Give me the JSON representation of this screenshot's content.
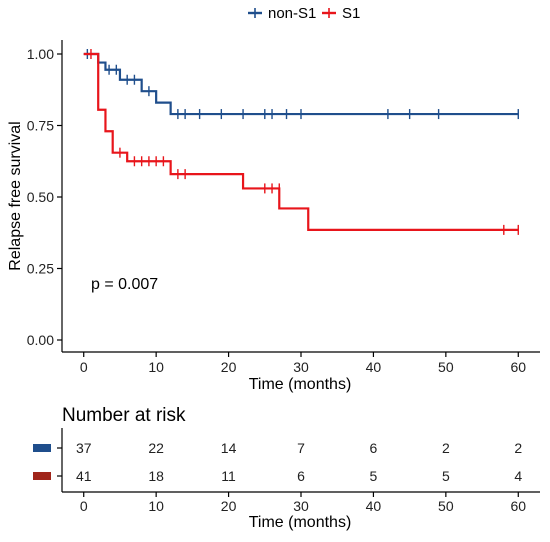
{
  "chart_data": [
    {
      "type": "line",
      "subtype": "kaplan-meier",
      "title": "",
      "xlabel": "Time (months)",
      "ylabel": "Relapse free survival",
      "xlim": [
        -3,
        63
      ],
      "ylim": [
        0,
        1.0
      ],
      "x_ticks": [
        0,
        10,
        20,
        30,
        40,
        50,
        60
      ],
      "y_ticks": [
        0,
        0.25,
        0.5,
        0.75,
        1.0
      ],
      "y_tick_labels": [
        "0.00",
        "0.25",
        "0.50",
        "0.75",
        "1.00"
      ],
      "grid": false,
      "legend_position": "top",
      "annotation": "p = 0.007",
      "series": [
        {
          "name": "non-S1",
          "color": "#1f4e8c",
          "steps": [
            [
              0,
              1.0
            ],
            [
              2,
              0.97
            ],
            [
              3,
              0.945
            ],
            [
              5,
              0.91
            ],
            [
              8,
              0.87
            ],
            [
              10,
              0.83
            ],
            [
              12,
              0.79
            ],
            [
              60,
              0.79
            ]
          ],
          "censored": [
            [
              0.5,
              1.0
            ],
            [
              3.5,
              0.945
            ],
            [
              4.5,
              0.945
            ],
            [
              6,
              0.91
            ],
            [
              7,
              0.91
            ],
            [
              9,
              0.87
            ],
            [
              13,
              0.79
            ],
            [
              14,
              0.79
            ],
            [
              16,
              0.79
            ],
            [
              19,
              0.79
            ],
            [
              22,
              0.79
            ],
            [
              25,
              0.79
            ],
            [
              26,
              0.79
            ],
            [
              28,
              0.79
            ],
            [
              30,
              0.79
            ],
            [
              42,
              0.79
            ],
            [
              45,
              0.79
            ],
            [
              49,
              0.79
            ],
            [
              60,
              0.79
            ]
          ]
        },
        {
          "name": "S1",
          "color": "#e8151b",
          "steps": [
            [
              0,
              1.0
            ],
            [
              2,
              0.805
            ],
            [
              3,
              0.73
            ],
            [
              4,
              0.655
            ],
            [
              6,
              0.625
            ],
            [
              12,
              0.58
            ],
            [
              22,
              0.53
            ],
            [
              27,
              0.46
            ],
            [
              31,
              0.385
            ],
            [
              60,
              0.385
            ]
          ],
          "censored": [
            [
              1,
              1.0
            ],
            [
              5,
              0.655
            ],
            [
              7,
              0.625
            ],
            [
              8,
              0.625
            ],
            [
              9,
              0.625
            ],
            [
              10,
              0.625
            ],
            [
              11,
              0.625
            ],
            [
              13,
              0.58
            ],
            [
              14,
              0.58
            ],
            [
              25,
              0.53
            ],
            [
              26,
              0.53
            ],
            [
              27,
              0.53
            ],
            [
              58,
              0.385
            ],
            [
              60,
              0.385
            ]
          ]
        }
      ]
    },
    {
      "type": "table",
      "title": "Number at risk",
      "xlabel": "Time (months)",
      "x_ticks": [
        0,
        10,
        20,
        30,
        40,
        50,
        60
      ],
      "rows": [
        {
          "group": "non-S1",
          "color": "#1f4e8c",
          "values": [
            37,
            22,
            14,
            7,
            6,
            2,
            2
          ]
        },
        {
          "group": "S1",
          "color": "#a0251a",
          "values": [
            41,
            18,
            11,
            6,
            5,
            5,
            4
          ]
        }
      ]
    }
  ]
}
